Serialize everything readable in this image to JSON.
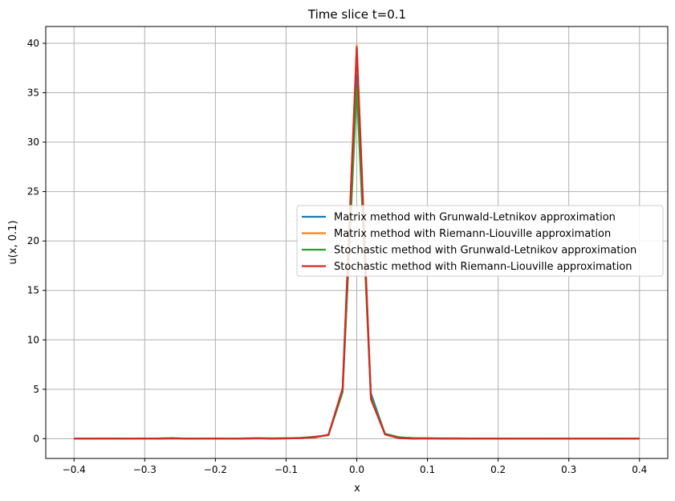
{
  "chart_data": {
    "type": "line",
    "title": "Time slice t=0.1",
    "xlabel": "x",
    "ylabel": "u(x, 0.1)",
    "xlim": [
      -0.44,
      0.44
    ],
    "ylim": [
      -2,
      41.7
    ],
    "xticks": [
      -0.4,
      -0.3,
      -0.2,
      -0.1,
      0.0,
      0.1,
      0.2,
      0.3,
      0.4
    ],
    "xtick_labels": [
      "−0.4",
      "−0.3",
      "−0.2",
      "−0.1",
      "0.0",
      "0.1",
      "0.2",
      "0.3",
      "0.4"
    ],
    "yticks": [
      0,
      5,
      10,
      15,
      20,
      25,
      30,
      35,
      40
    ],
    "ytick_labels": [
      "0",
      "5",
      "10",
      "15",
      "20",
      "25",
      "30",
      "35",
      "40"
    ],
    "grid": true,
    "legend_position": "center-right",
    "x": [
      -0.4,
      -0.38,
      -0.36,
      -0.34,
      -0.32,
      -0.3,
      -0.28,
      -0.26,
      -0.24,
      -0.22,
      -0.2,
      -0.18,
      -0.16,
      -0.14,
      -0.12,
      -0.1,
      -0.08,
      -0.06,
      -0.04,
      -0.02,
      0.0,
      0.02,
      0.04,
      0.06,
      0.08,
      0.1,
      0.12,
      0.14,
      0.16,
      0.18,
      0.2,
      0.22,
      0.24,
      0.26,
      0.28,
      0.3,
      0.32,
      0.34,
      0.36,
      0.38,
      0.4
    ],
    "series": [
      {
        "name": "Matrix method with Grunwald-Letnikov approximation",
        "color": "#1f77b4",
        "values": [
          0.02,
          0.02,
          0.02,
          0.02,
          0.02,
          0.02,
          0.02,
          0.02,
          0.02,
          0.02,
          0.02,
          0.02,
          0.02,
          0.03,
          0.03,
          0.04,
          0.06,
          0.12,
          0.4,
          4.9,
          36.8,
          4.6,
          0.45,
          0.12,
          0.06,
          0.04,
          0.03,
          0.03,
          0.02,
          0.02,
          0.02,
          0.02,
          0.02,
          0.02,
          0.02,
          0.02,
          0.02,
          0.02,
          0.02,
          0.02,
          0.02
        ]
      },
      {
        "name": "Matrix method with Riemann-Liouville approximation",
        "color": "#ff7f0e",
        "values": [
          0.02,
          0.02,
          0.02,
          0.02,
          0.02,
          0.02,
          0.02,
          0.02,
          0.02,
          0.02,
          0.02,
          0.02,
          0.02,
          0.03,
          0.03,
          0.04,
          0.06,
          0.12,
          0.42,
          5.0,
          39.8,
          4.2,
          0.45,
          0.12,
          0.06,
          0.04,
          0.03,
          0.03,
          0.02,
          0.02,
          0.02,
          0.02,
          0.02,
          0.02,
          0.02,
          0.02,
          0.02,
          0.02,
          0.02,
          0.02,
          0.02
        ]
      },
      {
        "name": "Stochastic method with Grunwald-Letnikov approximation",
        "color": "#2ca02c",
        "values": [
          0.0,
          0.01,
          0.0,
          0.02,
          0.0,
          0.01,
          0.03,
          0.06,
          0.0,
          0.02,
          0.01,
          0.0,
          0.03,
          0.05,
          0.02,
          0.04,
          0.08,
          0.2,
          0.35,
          4.7,
          35.5,
          4.3,
          0.5,
          0.15,
          0.05,
          0.03,
          0.02,
          0.01,
          0.0,
          0.02,
          0.0,
          0.01,
          0.0,
          0.0,
          0.01,
          0.0,
          0.0,
          0.0,
          0.01,
          0.0,
          0.0
        ]
      },
      {
        "name": "Stochastic method with Riemann-Liouville approximation",
        "color": "#d62728",
        "values": [
          0.0,
          0.0,
          0.01,
          0.0,
          0.0,
          0.02,
          0.0,
          0.03,
          0.0,
          0.0,
          0.01,
          0.0,
          0.0,
          0.04,
          0.0,
          0.02,
          0.06,
          0.15,
          0.38,
          5.1,
          39.6,
          4.0,
          0.42,
          0.05,
          0.0,
          0.02,
          0.0,
          0.0,
          0.0,
          0.01,
          0.0,
          0.0,
          0.0,
          0.0,
          0.0,
          0.0,
          0.0,
          0.0,
          0.0,
          0.0,
          0.0
        ]
      }
    ]
  }
}
